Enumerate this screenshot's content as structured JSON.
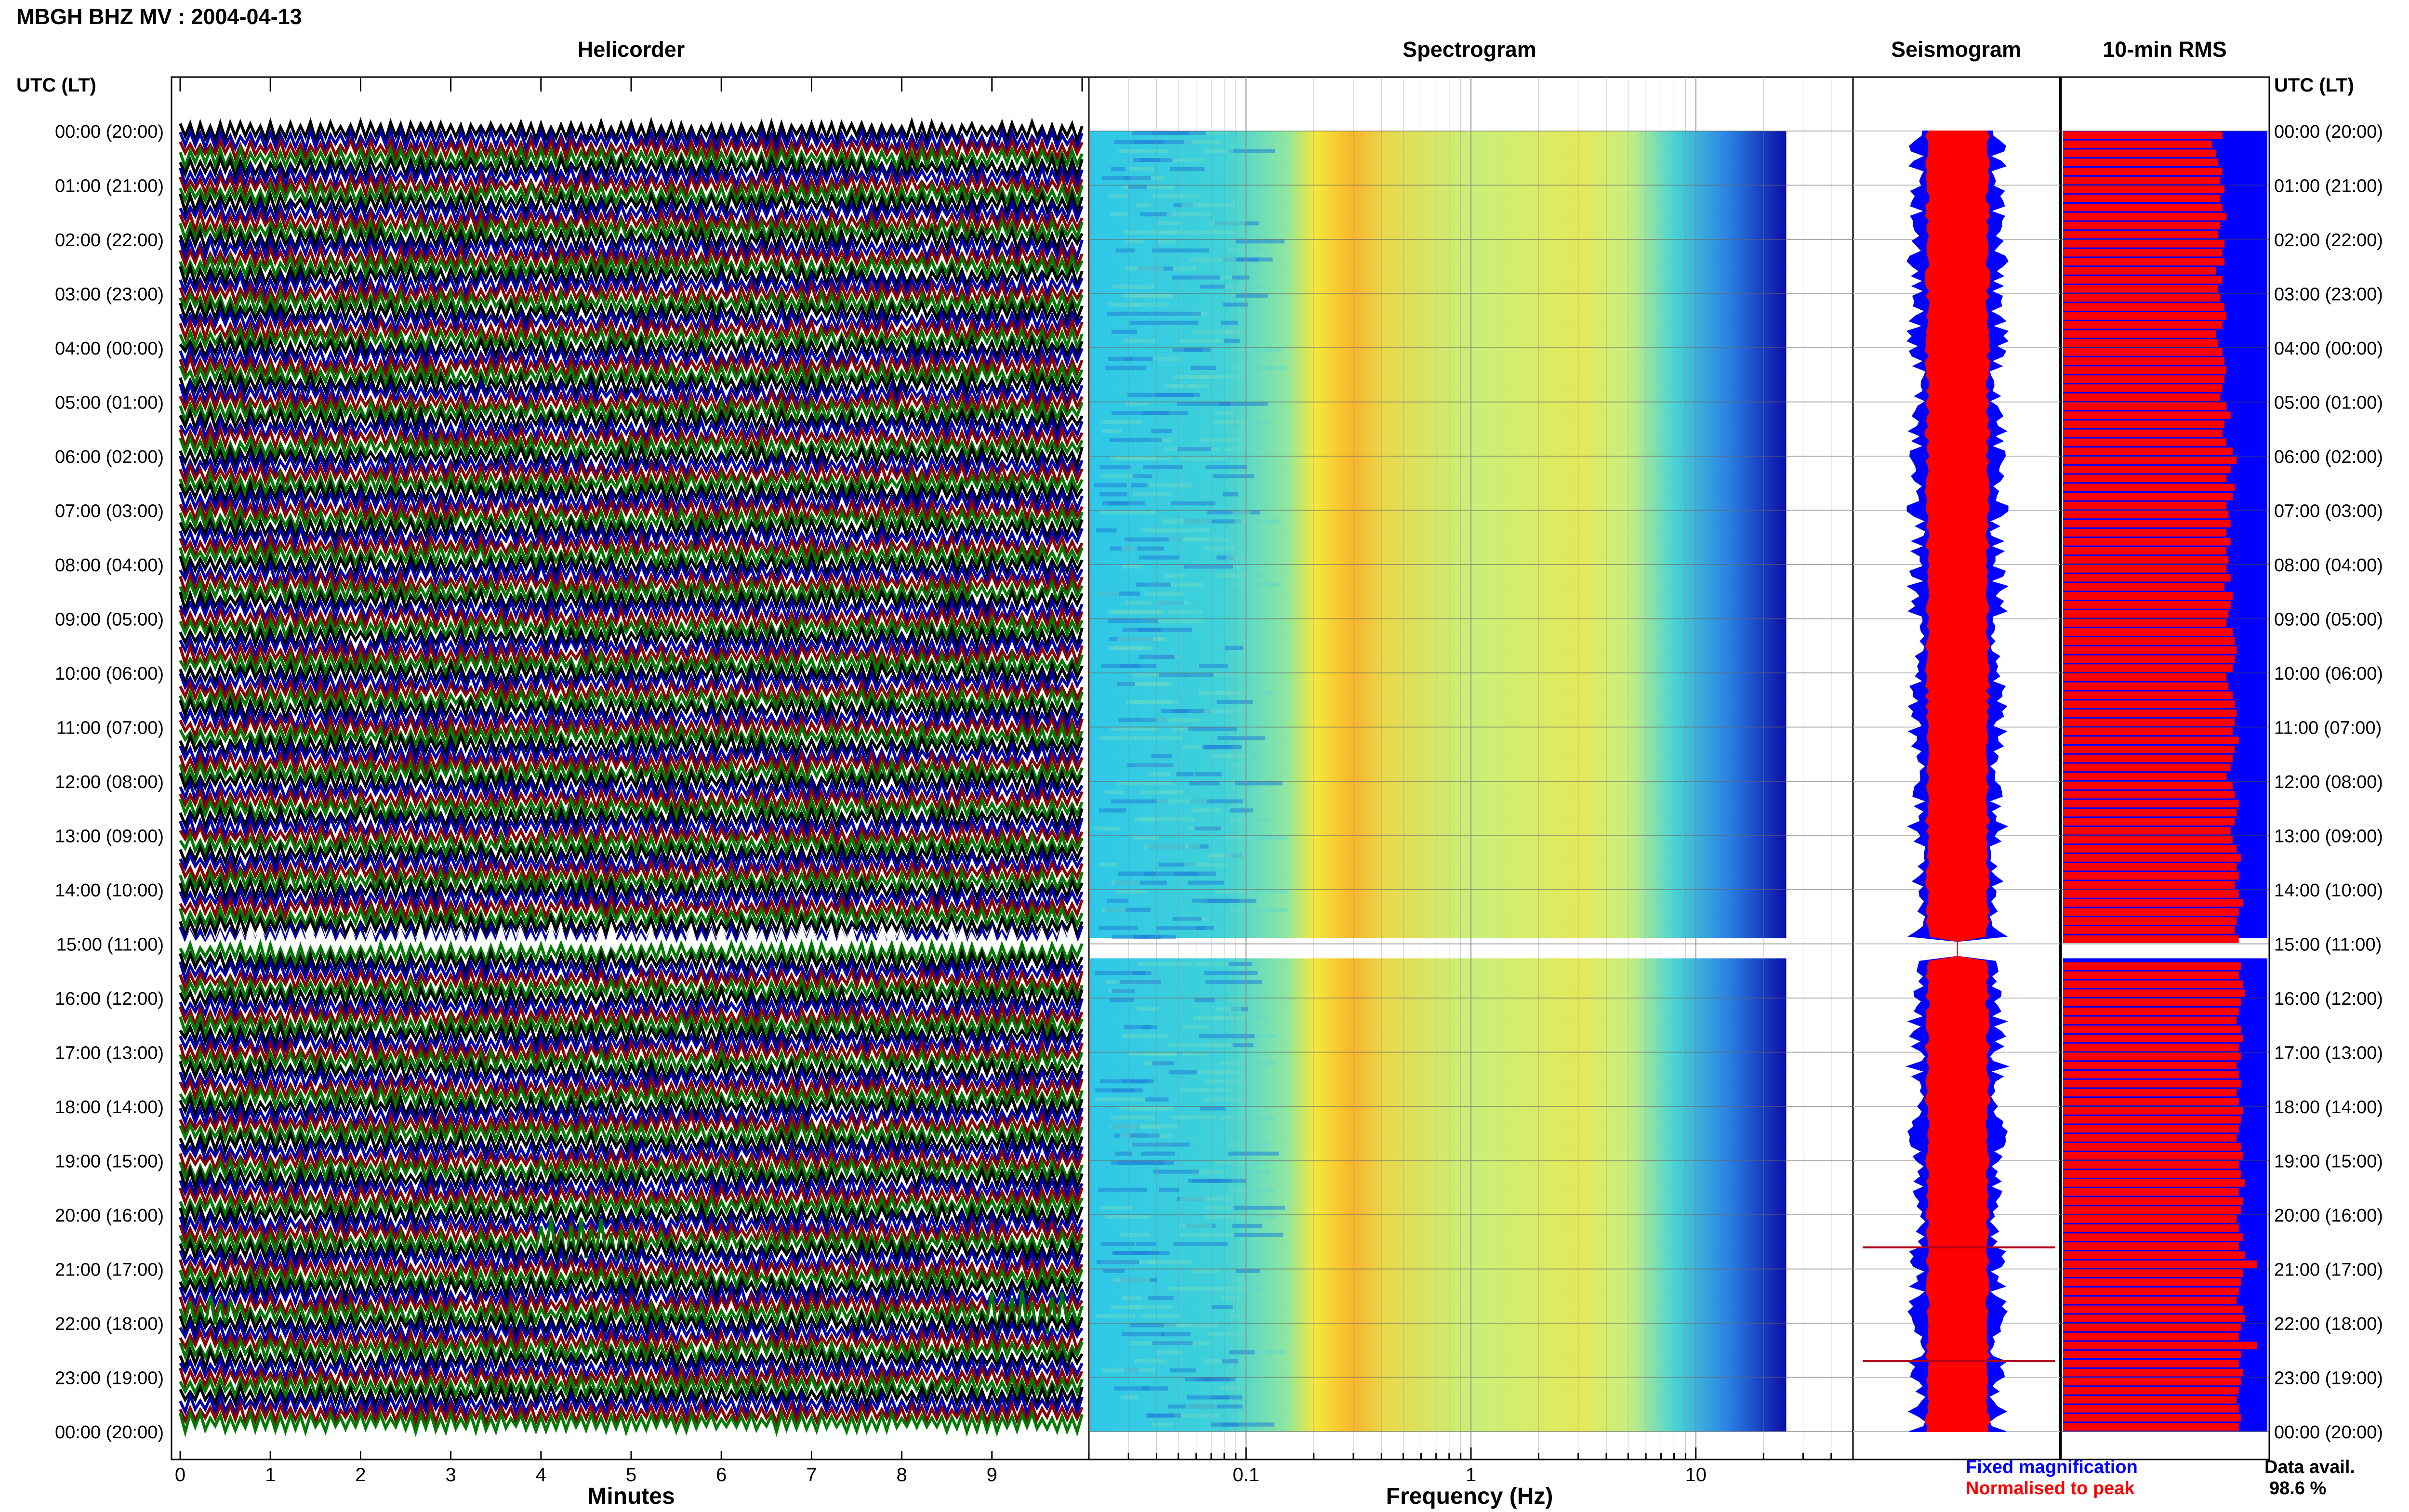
{
  "header": {
    "station_title": "MBGH BHZ MV : 2004-04-13",
    "time_axis_label": "UTC (LT)"
  },
  "panels": {
    "helicorder": "Helicorder",
    "spectrogram": "Spectrogram",
    "seismogram": "Seismogram",
    "rms": "10-min RMS"
  },
  "colors": {
    "helicorder_traces": [
      "#000000",
      "#0000b0",
      "#8b0000",
      "#007a00"
    ],
    "rms_fixed": "#0000ff",
    "rms_normalised": "#ff0000",
    "seismogram_fixed": "#0000ff",
    "seismogram_normalised": "#ff0000",
    "legend_fixed": "#0000ff",
    "legend_normalised": "#ff0000"
  },
  "legend": {
    "fixed": "Fixed magnification",
    "normalised": "Normalised to peak",
    "data_avail_label": "Data avail.",
    "data_avail_value": "98.6 %"
  },
  "chart_data": [
    {
      "type": "line",
      "panel": "helicorder",
      "x_ticks": [
        "0",
        "1",
        "2",
        "3",
        "4",
        "5",
        "6",
        "7",
        "8",
        "9"
      ],
      "xlabel": "Minutes",
      "xlim": [
        0,
        10
      ],
      "hour_ticks": [
        "00:00 (20:00)",
        "01:00 (21:00)",
        "02:00 (22:00)",
        "03:00 (23:00)",
        "04:00 (00:00)",
        "05:00 (01:00)",
        "06:00 (02:00)",
        "07:00 (03:00)",
        "08:00 (04:00)",
        "09:00 (05:00)",
        "10:00 (06:00)",
        "11:00 (07:00)",
        "12:00 (08:00)",
        "13:00 (09:00)",
        "14:00 (10:00)",
        "15:00 (11:00)",
        "16:00 (12:00)",
        "17:00 (13:00)",
        "18:00 (14:00)",
        "19:00 (15:00)",
        "20:00 (16:00)",
        "21:00 (17:00)",
        "22:00 (18:00)",
        "23:00 (19:00)",
        "00:00 (20:00)"
      ],
      "rows_per_hour": 6,
      "gap_rows": [
        90
      ],
      "events": [
        {
          "row": 123,
          "start_min": 4.0,
          "end_min": 5.1
        },
        {
          "row": 131,
          "start_min": 0.1,
          "end_min": 0.6
        },
        {
          "row": 131,
          "start_min": 9.0,
          "end_min": 9.8
        }
      ]
    },
    {
      "type": "heatmap",
      "panel": "spectrogram",
      "xlabel": "Frequency (Hz)",
      "x_scale": "log",
      "xlim": [
        0.02,
        50
      ],
      "x_ticks": [
        "0.1",
        "1",
        "10"
      ],
      "x_tick_values": [
        0.1,
        1,
        10
      ],
      "x_max_hz": 25,
      "peak_band_hz": [
        0.2,
        0.4
      ],
      "secondary_band_hz": [
        3,
        5
      ],
      "gap_hour": 15
    },
    {
      "type": "line",
      "panel": "seismogram",
      "series": [
        "Fixed magnification",
        "Normalised to peak"
      ],
      "gap_hour": 15,
      "spikes_hours": [
        20.6,
        22.7
      ]
    },
    {
      "type": "bar",
      "panel": "rms",
      "orientation": "horizontal",
      "series": [
        "Fixed magnification",
        "Normalised to peak"
      ],
      "gap_hour": 15,
      "normalised_fraction": [
        0.78,
        0.73,
        0.75,
        0.76,
        0.78,
        0.77,
        0.79,
        0.77,
        0.78,
        0.8,
        0.77,
        0.76,
        0.79,
        0.78,
        0.79,
        0.75,
        0.78,
        0.76,
        0.77,
        0.79,
        0.8,
        0.78,
        0.75,
        0.76,
        0.78,
        0.79,
        0.8,
        0.79,
        0.78,
        0.77,
        0.8,
        0.82,
        0.79,
        0.78,
        0.8,
        0.83,
        0.85,
        0.82,
        0.8,
        0.84,
        0.83,
        0.8,
        0.81,
        0.82,
        0.8,
        0.82,
        0.8,
        0.81,
        0.8,
        0.82,
        0.79,
        0.83,
        0.82,
        0.81,
        0.8,
        0.83,
        0.84,
        0.85,
        0.84,
        0.83,
        0.8,
        0.81,
        0.83,
        0.84,
        0.85,
        0.84,
        0.83,
        0.86,
        0.84,
        0.83,
        0.82,
        0.8,
        0.83,
        0.84,
        0.86,
        0.85,
        0.84,
        0.82,
        0.83,
        0.85,
        0.87,
        0.85,
        0.86,
        0.84,
        0.86,
        0.88,
        0.86,
        0.85,
        0.84,
        0.86,
        0.0,
        0.89,
        0.87,
        0.86,
        0.88,
        0.89,
        0.87,
        0.86,
        0.85,
        0.87,
        0.88,
        0.86,
        0.87,
        0.85,
        0.86,
        0.87,
        0.85,
        0.86,
        0.88,
        0.87,
        0.86,
        0.85,
        0.87,
        0.88,
        0.86,
        0.87,
        0.89,
        0.86,
        0.88,
        0.87,
        0.85,
        0.86,
        0.88,
        0.86,
        0.89,
        0.95,
        0.88,
        0.87,
        0.86,
        0.85,
        0.88,
        0.89,
        0.87,
        0.86,
        0.95,
        0.87,
        0.86,
        0.88,
        0.87,
        0.86,
        0.85,
        0.86,
        0.87,
        0.86
      ]
    }
  ]
}
